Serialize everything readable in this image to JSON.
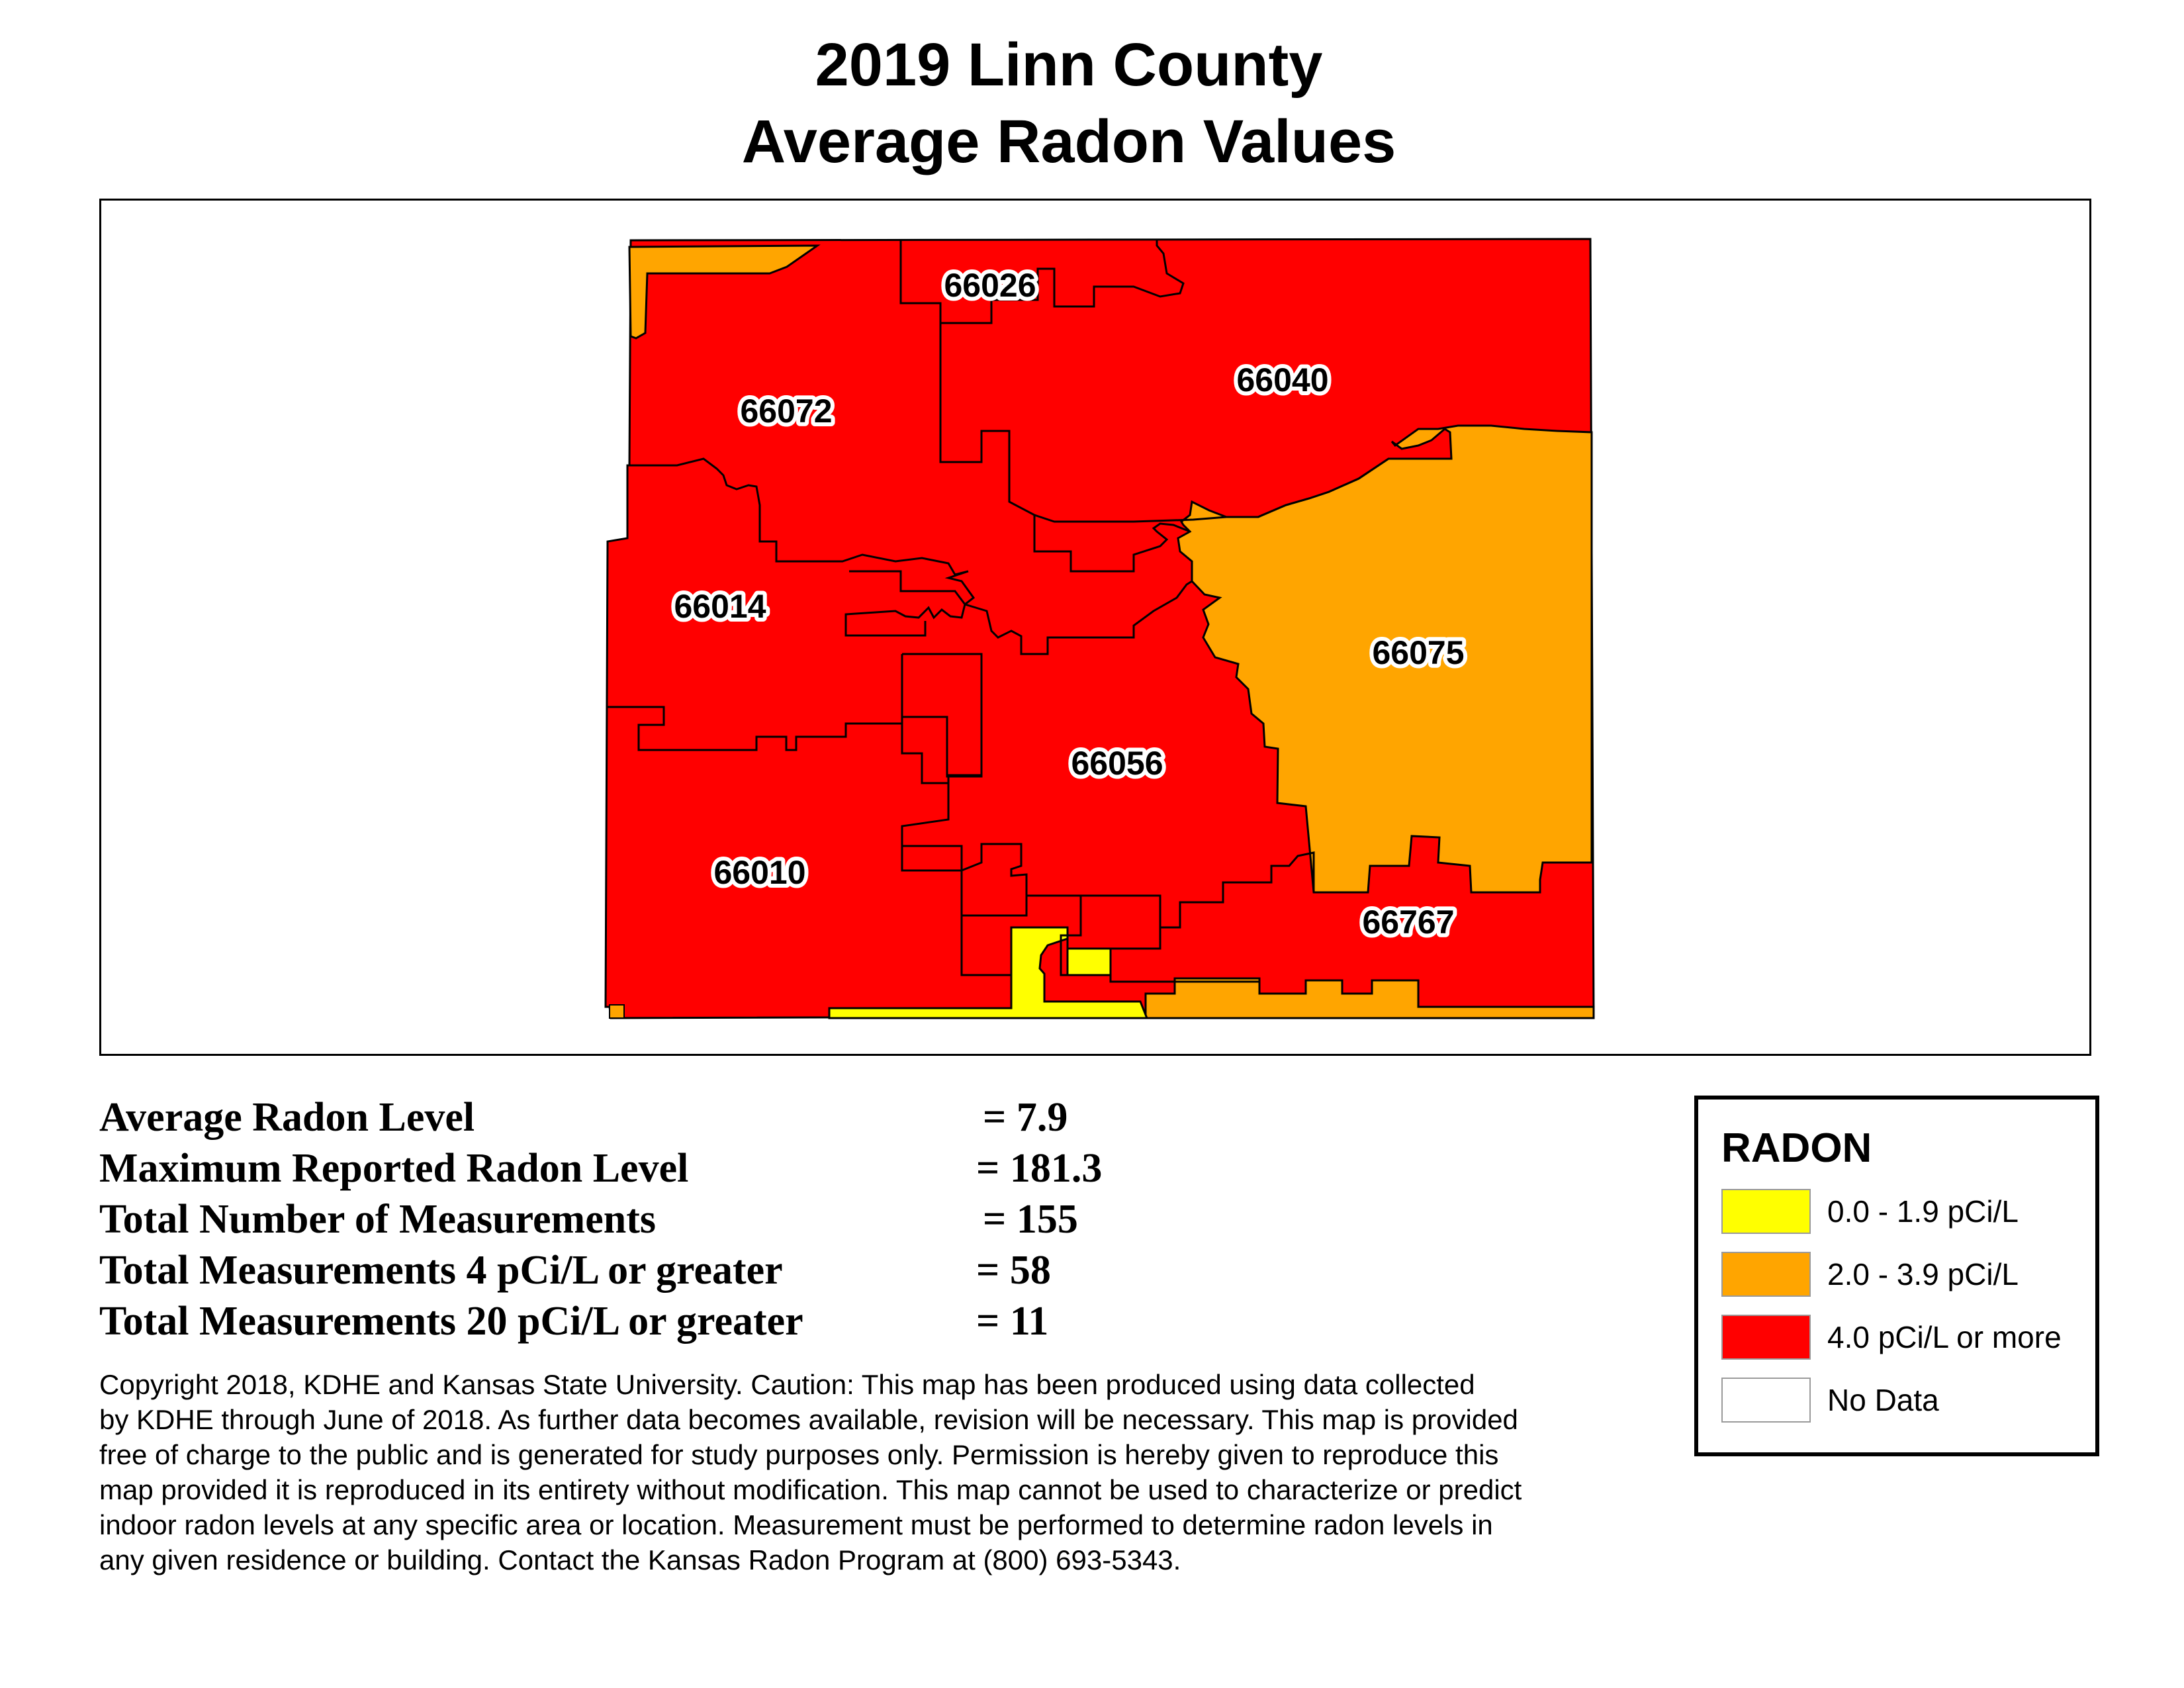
{
  "title": {
    "line1": "2019 Linn County",
    "line2": "Average Radon Values"
  },
  "colors": {
    "low": "#FFFF00",
    "medium": "#FFA500",
    "high": "#FF0000",
    "no_data": "#FFFFFF",
    "boundary": "#000000"
  },
  "map": {
    "zip_codes": [
      {
        "zip": "66026",
        "level": "high"
      },
      {
        "zip": "66040",
        "level": "high"
      },
      {
        "zip": "66072",
        "level": "high"
      },
      {
        "zip": "66014",
        "level": "high"
      },
      {
        "zip": "66075",
        "level": "medium"
      },
      {
        "zip": "66056",
        "level": "high"
      },
      {
        "zip": "66010",
        "level": "high"
      },
      {
        "zip": "66767",
        "level": "high"
      }
    ]
  },
  "stats": [
    {
      "label": "Average Radon Level",
      "value": "= 7.9"
    },
    {
      "label": "Maximum Reported Radon Level",
      "value": "= 181.3"
    },
    {
      "label": "Total Number of Measurements",
      "value": "= 155"
    },
    {
      "label": "Total Measurements 4 pCi/L or greater",
      "value": "= 58"
    },
    {
      "label": "Total Measurements 20 pCi/L or greater",
      "value": "= 11"
    }
  ],
  "copyright": {
    "lines": [
      "Copyright 2018, KDHE and Kansas State University.  Caution: This map has been produced using data collected",
      "by KDHE through June of 2018.  As further data becomes available, revision will be necessary. This map is provided",
      "free of charge to the public and is generated for study purposes only.  Permission is hereby given to reproduce this",
      "map provided it is reproduced in its entirety without modification. This map cannot be used to characterize or predict",
      "indoor radon levels at any specific area or location. Measurement must be performed to determine radon levels in",
      "any given residence or building. Contact the Kansas Radon Program at (800) 693-5343."
    ]
  },
  "legend": {
    "title": "RADON",
    "items": [
      {
        "label": "0.0 - 1.9 pCi/L",
        "color": "#FFFF00"
      },
      {
        "label": "2.0 - 3.9 pCi/L",
        "color": "#FFA500"
      },
      {
        "label": "4.0 pCi/L or more",
        "color": "#FF0000"
      },
      {
        "label": "No Data",
        "color": "#FFFFFF"
      }
    ]
  }
}
